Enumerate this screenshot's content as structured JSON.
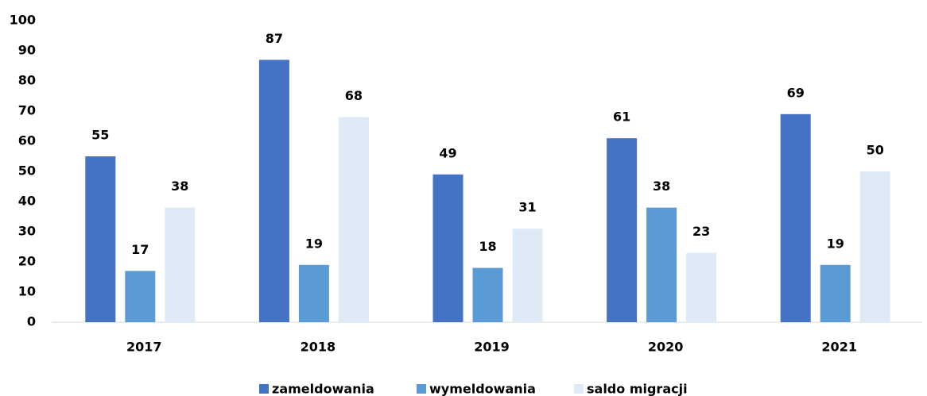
{
  "chart_data": {
    "type": "bar",
    "categories": [
      "2017",
      "2018",
      "2019",
      "2020",
      "2021"
    ],
    "series": [
      {
        "name": "zameldowania",
        "color": "#4472c4",
        "values": [
          55,
          87,
          49,
          61,
          69
        ]
      },
      {
        "name": "wymeldowania",
        "color": "#5b9bd5",
        "values": [
          17,
          19,
          18,
          38,
          19
        ]
      },
      {
        "name": "saldo migracji",
        "color": "#deebf7",
        "values": [
          38,
          68,
          31,
          23,
          50
        ]
      }
    ],
    "ylim": [
      0,
      100
    ],
    "yticks": [
      0,
      10,
      20,
      30,
      40,
      50,
      60,
      70,
      80,
      90,
      100
    ],
    "grid": false,
    "legend": "bottom"
  }
}
